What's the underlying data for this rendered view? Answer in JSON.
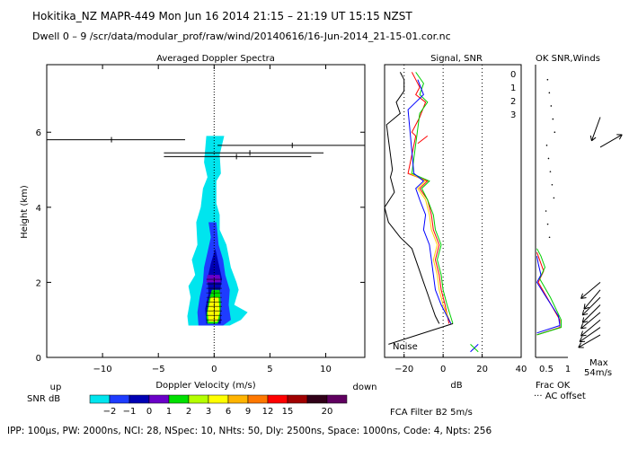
{
  "header": {
    "line1": "Hokitika_NZ  MAPR-449  Mon Jun 16 2014 21:15 – 21:19 UT 15:15 NZST",
    "line2": "Dwell  0 –  9   /scr/data/modular_prof/raw/wind/20140616/16-Jun-2014_21-15-01.cor.nc"
  },
  "footer": "IPP: 100µs,  PW: 2000ns,  NCI:  28,  NSpec: 10,  NHts: 50,  Dly: 2500ns,  Space: 1000ns,  Code: 4,  Npts: 256",
  "colors": {
    "snr_scale": [
      "#00e5ee",
      "#1e3cff",
      "#0000b4",
      "#6a00c8",
      "#00e000",
      "#b4ff00",
      "#ffff00",
      "#ffb400",
      "#ff7800",
      "#ff0000",
      "#a00000",
      "#300018",
      "#600060"
    ],
    "line_black": "#000000",
    "line_red": "#ff0000",
    "line_yellow": "#ffd000",
    "line_green": "#00d000",
    "line_blue": "#0000ff"
  },
  "chart_data": [
    {
      "type": "heatmap",
      "title": "Averaged Doppler Spectra",
      "xlabel": "Doppler Velocity (m/s)",
      "ylabel": "Height (km)",
      "xlim": [
        -15,
        13.5
      ],
      "ylim": [
        0,
        7.8
      ],
      "xticks": [
        -10,
        -5,
        0,
        5,
        10
      ],
      "yticks": [
        0,
        2,
        4,
        6
      ],
      "left_label": "up",
      "right_label": "down",
      "colorbar": {
        "label": "SNR dB",
        "ticks": [
          "−2",
          "−1",
          "0",
          "1",
          "2",
          "3",
          "6",
          "9",
          "12",
          "15",
          "20"
        ]
      },
      "error_bars": [
        {
          "height": 5.8,
          "center": -9.2,
          "low": -15.0,
          "high": -2.6
        },
        {
          "height": 5.65,
          "center": 7.0,
          "low": 0.3,
          "high": 13.5
        },
        {
          "height": 5.45,
          "center": 3.2,
          "low": -4.5,
          "high": 9.8
        },
        {
          "height": 5.35,
          "center": 2.0,
          "low": -4.5,
          "high": 8.7
        }
      ]
    },
    {
      "type": "line",
      "title": "Signal, SNR",
      "xlabel": "dB",
      "xlim": [
        -30,
        40
      ],
      "ylim": [
        0,
        7.8
      ],
      "xticks": [
        -20,
        0,
        20,
        40
      ],
      "noise_label": "Noise",
      "series": [
        {
          "name": "Signal",
          "x": [
            -2,
            -4,
            -6,
            -8,
            -10,
            -12,
            -14,
            -16,
            -22,
            -28,
            -30,
            -25,
            -27,
            -26,
            -27,
            -28,
            -29,
            -22,
            -24,
            -20,
            -20,
            -22
          ],
          "y": [
            0.9,
            1.1,
            1.4,
            1.7,
            2.0,
            2.3,
            2.6,
            2.9,
            3.2,
            3.6,
            4.0,
            4.4,
            4.8,
            5.0,
            5.4,
            5.8,
            6.2,
            6.5,
            6.8,
            7.1,
            7.4,
            7.6
          ]
        },
        {
          "name": "0",
          "x": [
            3,
            1,
            -1,
            -2,
            -4,
            -2,
            -5,
            -6,
            -8,
            -12,
            -8,
            -18,
            -14,
            -16,
            -12,
            -9,
            -14,
            -12,
            -14,
            -16
          ],
          "y": [
            0.9,
            1.4,
            1.8,
            2.2,
            2.6,
            3.0,
            3.4,
            3.8,
            4.2,
            4.5,
            4.7,
            4.9,
            5.9,
            6.0,
            6.4,
            6.8,
            7.0,
            7.2,
            7.4,
            7.6
          ]
        },
        {
          "name": "1",
          "x": [
            4,
            0,
            -2,
            -3,
            -5,
            -3,
            -6,
            -7,
            -9,
            -13,
            -9,
            -17
          ],
          "y": [
            0.9,
            1.4,
            1.8,
            2.2,
            2.6,
            3.0,
            3.4,
            3.8,
            4.2,
            4.5,
            4.7,
            4.9
          ]
        },
        {
          "name": "2",
          "x": [
            5,
            2,
            0,
            -1,
            -3,
            -1,
            -4,
            -5,
            -8,
            -11,
            -7,
            -16,
            -12,
            -8,
            -12,
            -10,
            -14
          ],
          "y": [
            0.9,
            1.4,
            1.8,
            2.2,
            2.6,
            3.0,
            3.4,
            3.8,
            4.2,
            4.5,
            4.7,
            4.9,
            6.5,
            6.8,
            7.0,
            7.3,
            7.6
          ]
        },
        {
          "name": "3",
          "x": [
            4,
            -1,
            -4,
            -5,
            -6,
            -7,
            -10,
            -9,
            -12,
            -14,
            -10,
            -15,
            -18,
            -14,
            -10,
            -13
          ],
          "y": [
            0.9,
            1.4,
            1.8,
            2.2,
            2.6,
            3.0,
            3.4,
            3.8,
            4.2,
            4.5,
            4.7,
            4.9,
            6.6,
            6.8,
            7.0,
            7.4
          ]
        }
      ]
    },
    {
      "type": "line",
      "title": "OK SNR,Winds",
      "legend": [
        "0",
        "1",
        "2",
        "3"
      ],
      "xticks": [
        "0.5",
        "1"
      ],
      "xlim": [
        0,
        1.2
      ],
      "footer_labels": [
        "Frac OK",
        "··· AC offset",
        "Max",
        "54m/s"
      ],
      "series": [
        {
          "name": "0",
          "x": [
            0.05,
            0.9,
            0.9,
            0.5,
            0.1,
            0.3,
            0.15,
            0.05
          ],
          "y": [
            0.6,
            0.8,
            1.0,
            1.5,
            2.0,
            2.3,
            2.6,
            2.8
          ]
        },
        {
          "name": "2",
          "x": [
            0.05,
            0.95,
            0.95,
            0.55,
            0.15,
            0.35,
            0.2,
            0.05
          ],
          "y": [
            0.6,
            0.8,
            1.0,
            1.6,
            2.1,
            2.4,
            2.7,
            2.9
          ]
        },
        {
          "name": "3",
          "x": [
            0.05,
            0.9,
            0.85,
            0.4,
            0.05,
            0.2,
            0.1,
            0.05
          ],
          "y": [
            0.65,
            0.85,
            1.1,
            1.6,
            2.0,
            2.2,
            2.5,
            2.7
          ]
        }
      ],
      "winds": [
        {
          "height": 0.6,
          "dir": 240
        },
        {
          "height": 0.8,
          "dir": 235
        },
        {
          "height": 1.0,
          "dir": 230
        },
        {
          "height": 1.2,
          "dir": 230
        },
        {
          "height": 1.4,
          "dir": 225
        },
        {
          "height": 1.6,
          "dir": 225
        },
        {
          "height": 1.8,
          "dir": 220
        },
        {
          "height": 2.0,
          "dir": 230
        },
        {
          "height": 5.6,
          "dir": 60
        },
        {
          "height": 6.4,
          "dir": 200
        }
      ]
    }
  ],
  "filter_label": "FCA Filter B2  5m/s"
}
